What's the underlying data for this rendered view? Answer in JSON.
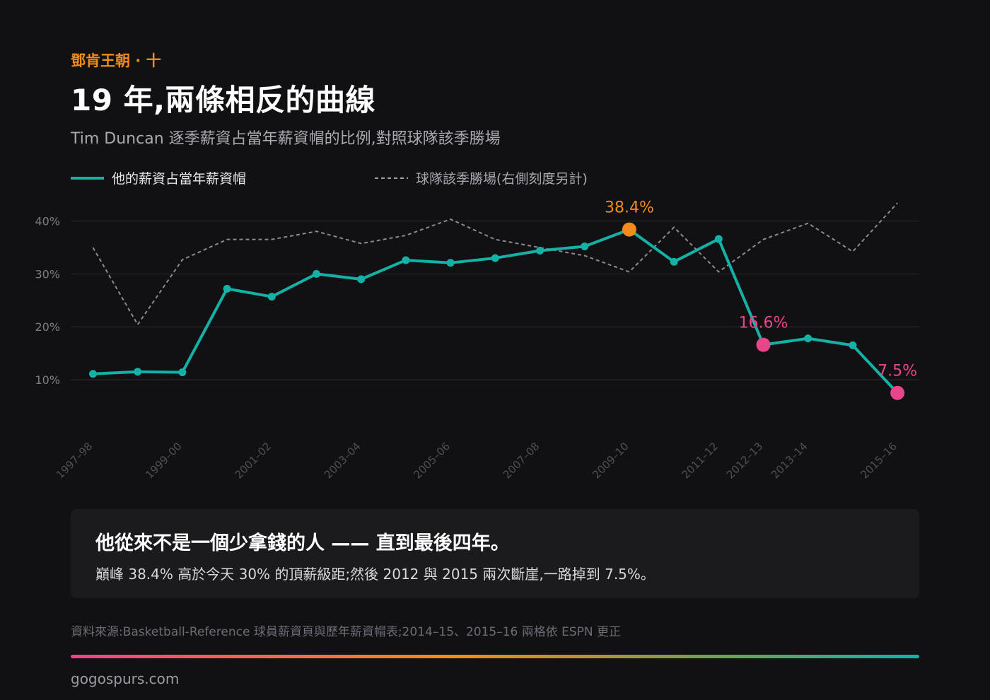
{
  "header": {
    "kicker": "鄧肯王朝 · 十",
    "title": "19 年,兩條相反的曲線",
    "subtitle": "Tim Duncan 逐季薪資占當年薪資帽的比例,對照球隊該季勝場"
  },
  "chart_data": {
    "type": "line",
    "x": [
      "1997–98",
      "1998–99",
      "1999–00",
      "2000–01",
      "2001–02",
      "2002–03",
      "2003–04",
      "2004–05",
      "2005–06",
      "2006–07",
      "2007–08",
      "2008–09",
      "2009–10",
      "2010–11",
      "2011–12",
      "2012–13",
      "2013–14",
      "2014–15",
      "2015–16"
    ],
    "x_tick_labels": [
      "1997–98",
      "1999–00",
      "2001–02",
      "2003–04",
      "2005–06",
      "2007–08",
      "2009–10",
      "2011–12",
      "2012–13",
      "2013–14",
      "2015–16"
    ],
    "y_ticks": [
      "10%",
      "20%",
      "30%",
      "40%"
    ],
    "ylim": [
      0,
      40
    ],
    "grid": true,
    "legend_position": "top-left",
    "series": [
      {
        "name": "他的薪資占當年薪資帽",
        "style": "solid",
        "color": "#14b1a6",
        "values": [
          11.1,
          11.5,
          11.4,
          27.2,
          25.7,
          30.0,
          29.0,
          32.6,
          32.1,
          33.0,
          34.4,
          35.2,
          38.4,
          32.3,
          36.6,
          16.6,
          17.8,
          16.5,
          7.5
        ]
      },
      {
        "name": "球隊該季勝場(右側刻度另計)",
        "style": "dashed",
        "color": "#a0a0a6",
        "values": [
          56,
          37,
          53,
          58,
          58,
          60,
          57,
          59,
          63,
          58,
          56,
          54,
          50,
          61,
          50,
          58,
          62,
          55,
          67
        ]
      }
    ],
    "annotations": [
      {
        "index": 12,
        "label": "38.4%",
        "color": "#f28a1c"
      },
      {
        "index": 15,
        "label": "16.6%",
        "color": "#e8468a"
      },
      {
        "index": 18,
        "label": "7.5%",
        "color": "#e8468a"
      }
    ]
  },
  "callout": {
    "headline": "他從來不是一個少拿錢的人 —— 直到最後四年。",
    "body": "巔峰 38.4% 高於今天 30% 的頂薪級距;然後 2012 與 2015 兩次斷崖,一路掉到 7.5%。"
  },
  "source": "資料來源:Basketball-Reference 球員薪資頁與歷年薪資帽表;2014–15、2015–16 兩格依 ESPN 更正",
  "footer": "gogospurs.com"
}
